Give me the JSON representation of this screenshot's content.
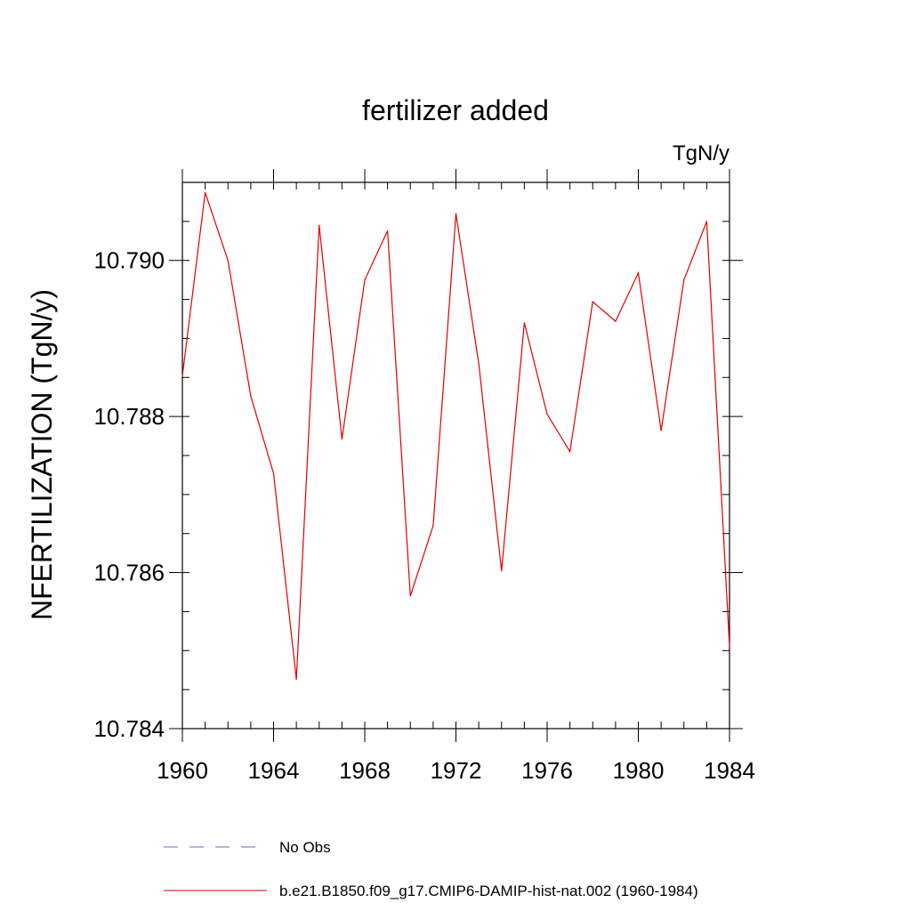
{
  "chart_data": {
    "type": "line",
    "title": "fertilizer added",
    "units": "TgN/y",
    "ylabel": "NFERTILIZATION  (TgN/y)",
    "xlabel": "",
    "xlim": [
      1960,
      1984
    ],
    "ylim": [
      10.784,
      10.791
    ],
    "x_ticks": [
      1960,
      1964,
      1968,
      1972,
      1976,
      1980,
      1984
    ],
    "x_tick_labels": [
      "1960",
      "1964",
      "1968",
      "1972",
      "1976",
      "1980",
      "1984"
    ],
    "x_minor_step": 1,
    "y_ticks": [
      10.784,
      10.786,
      10.788,
      10.79
    ],
    "y_tick_labels": [
      "10.784",
      "10.786",
      "10.788",
      "10.790"
    ],
    "y_minor_step": 0.0005,
    "grid": false,
    "legend_position": "bottom",
    "legend": [
      {
        "label": "No Obs",
        "color": "#6666cc",
        "dash": "dashed"
      },
      {
        "label": "b.e21.B1850.f09_g17.CMIP6-DAMIP-hist-nat.002 (1960-1984)",
        "color": "#dd0000",
        "dash": "solid"
      }
    ],
    "series": [
      {
        "name": "b.e21.B1850.f09_g17.CMIP6-DAMIP-hist-nat.002 (1960-1984)",
        "color": "#dd0000",
        "x": [
          1960,
          1961,
          1962,
          1963,
          1964,
          1965,
          1966,
          1967,
          1968,
          1969,
          1970,
          1971,
          1972,
          1973,
          1974,
          1975,
          1976,
          1977,
          1978,
          1979,
          1980,
          1981,
          1982,
          1983,
          1984
        ],
        "values": [
          10.78852,
          10.79087,
          10.79,
          10.78826,
          10.78727,
          10.78463,
          10.79045,
          10.78771,
          10.78975,
          10.79038,
          10.7857,
          10.7866,
          10.7906,
          10.78868,
          10.78602,
          10.7892,
          10.78803,
          10.78755,
          10.78947,
          10.78922,
          10.78984,
          10.78782,
          10.78975,
          10.7905,
          10.78505
        ]
      }
    ]
  }
}
